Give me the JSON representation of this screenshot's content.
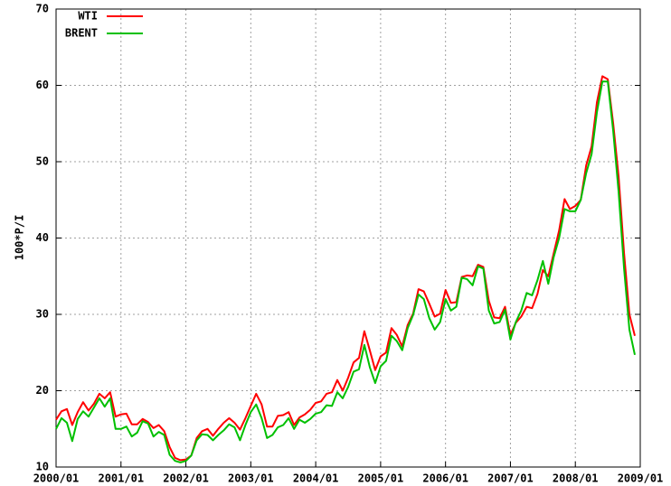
{
  "chart_data": {
    "type": "line",
    "ylabel": "100*P/I",
    "x": [
      "2000/01",
      "2000/02",
      "2000/03",
      "2000/04",
      "2000/05",
      "2000/06",
      "2000/07",
      "2000/08",
      "2000/09",
      "2000/10",
      "2000/11",
      "2000/12",
      "2001/01",
      "2001/02",
      "2001/03",
      "2001/04",
      "2001/05",
      "2001/06",
      "2001/07",
      "2001/08",
      "2001/09",
      "2001/10",
      "2001/11",
      "2001/12",
      "2002/01",
      "2002/02",
      "2002/03",
      "2002/04",
      "2002/05",
      "2002/06",
      "2002/07",
      "2002/08",
      "2002/09",
      "2002/10",
      "2002/11",
      "2002/12",
      "2003/01",
      "2003/02",
      "2003/03",
      "2003/04",
      "2003/05",
      "2003/06",
      "2003/07",
      "2003/08",
      "2003/09",
      "2003/10",
      "2003/11",
      "2003/12",
      "2004/01",
      "2004/02",
      "2004/03",
      "2004/04",
      "2004/05",
      "2004/06",
      "2004/07",
      "2004/08",
      "2004/09",
      "2004/10",
      "2004/11",
      "2004/12",
      "2005/01",
      "2005/02",
      "2005/03",
      "2005/04",
      "2005/05",
      "2005/06",
      "2005/07",
      "2005/08",
      "2005/09",
      "2005/10",
      "2005/11",
      "2005/12",
      "2006/01",
      "2006/02",
      "2006/03",
      "2006/04",
      "2006/05",
      "2006/06",
      "2006/07",
      "2006/08",
      "2006/09",
      "2006/10",
      "2006/11",
      "2006/12",
      "2007/01",
      "2007/02",
      "2007/03",
      "2007/04",
      "2007/05",
      "2007/06",
      "2007/07",
      "2007/08",
      "2007/09",
      "2007/10",
      "2007/11",
      "2007/12",
      "2008/01",
      "2008/02",
      "2008/03",
      "2008/04",
      "2008/05",
      "2008/06",
      "2008/07",
      "2008/08",
      "2008/09",
      "2008/10",
      "2008/11",
      "2008/12"
    ],
    "series": [
      {
        "name": "WTI",
        "color": "#ff0000",
        "values": [
          16.2,
          17.3,
          17.6,
          15.5,
          17.2,
          18.5,
          17.4,
          18.3,
          19.6,
          19.0,
          19.8,
          16.6,
          16.9,
          17.0,
          15.6,
          15.6,
          16.3,
          15.9,
          15.1,
          15.5,
          14.7,
          12.6,
          11.2,
          10.9,
          11.0,
          11.5,
          13.8,
          14.7,
          15.0,
          14.1,
          15.0,
          15.8,
          16.4,
          15.8,
          14.9,
          16.4,
          18.0,
          19.6,
          18.2,
          15.3,
          15.3,
          16.7,
          16.8,
          17.2,
          15.5,
          16.5,
          16.9,
          17.5,
          18.4,
          18.6,
          19.6,
          19.8,
          21.4,
          20.0,
          21.7,
          23.7,
          24.3,
          27.8,
          25.3,
          22.7,
          24.5,
          25.0,
          28.2,
          27.3,
          25.8,
          28.6,
          30.1,
          33.3,
          33.0,
          31.4,
          29.7,
          30.1,
          33.2,
          31.5,
          31.6,
          34.9,
          35.1,
          35.0,
          36.5,
          36.2,
          31.8,
          29.6,
          29.5,
          31.0,
          27.3,
          28.9,
          29.7,
          31.0,
          30.8,
          32.7,
          35.8,
          35.0,
          38.0,
          41.0,
          45.1,
          43.8,
          44.2,
          45.0,
          49.5,
          52.0,
          57.8,
          61.2,
          60.8,
          55.0,
          48.0,
          38.0,
          30.0,
          27.2
        ]
      },
      {
        "name": "BRENT",
        "color": "#00c000",
        "values": [
          15.0,
          16.4,
          15.8,
          13.4,
          16.3,
          17.3,
          16.6,
          17.8,
          19.0,
          17.9,
          19.0,
          15.0,
          15.0,
          15.3,
          14.0,
          14.5,
          16.0,
          15.7,
          14.0,
          14.6,
          14.2,
          11.6,
          10.8,
          10.6,
          10.8,
          11.5,
          13.5,
          14.3,
          14.2,
          13.5,
          14.2,
          14.8,
          15.6,
          15.2,
          13.5,
          15.5,
          17.2,
          18.2,
          16.4,
          13.8,
          14.2,
          15.2,
          15.5,
          16.4,
          15.0,
          16.2,
          15.8,
          16.3,
          17.0,
          17.2,
          18.1,
          18.0,
          19.8,
          19.0,
          20.5,
          22.5,
          22.8,
          26.0,
          23.1,
          21.0,
          23.2,
          23.9,
          27.2,
          26.5,
          25.3,
          28.2,
          29.9,
          32.6,
          32.0,
          29.5,
          28.0,
          29.0,
          32.0,
          30.5,
          31.0,
          34.8,
          34.6,
          33.8,
          36.3,
          36.0,
          30.5,
          28.8,
          29.0,
          30.6,
          26.7,
          29.0,
          30.5,
          32.8,
          32.5,
          34.5,
          37.0,
          34.0,
          37.5,
          40.0,
          43.8,
          43.5,
          43.5,
          45.0,
          48.5,
          51.0,
          56.5,
          60.5,
          60.5,
          54.0,
          46.0,
          36.0,
          28.0,
          24.7
        ]
      }
    ],
    "xlim": [
      "2000/01",
      "2009/01"
    ],
    "xticks": [
      "2000/01",
      "2001/01",
      "2002/01",
      "2003/01",
      "2004/01",
      "2005/01",
      "2006/01",
      "2007/01",
      "2008/01",
      "2009/01"
    ],
    "ylim": [
      10,
      70
    ],
    "yticks": [
      10,
      20,
      30,
      40,
      50,
      60,
      70
    ],
    "grid": true,
    "legend": "top-left"
  }
}
